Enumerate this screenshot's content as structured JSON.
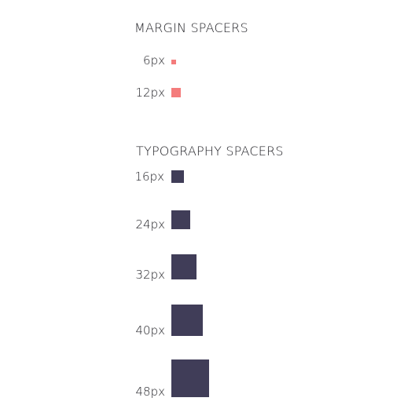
{
  "margin_section": {
    "title": "MARGIN SPACERS",
    "color": "#f47c7c",
    "items": [
      {
        "label": "6px",
        "size": 6
      },
      {
        "label": "12px",
        "size": 12
      }
    ]
  },
  "typography_section": {
    "title": "TYPOGRAPHY SPACERS",
    "color": "#403d58",
    "items": [
      {
        "label": "16px",
        "size": 16
      },
      {
        "label": "24px",
        "size": 24
      },
      {
        "label": "32px",
        "size": 32
      },
      {
        "label": "40px",
        "size": 40
      },
      {
        "label": "48px",
        "size": 48
      }
    ]
  }
}
